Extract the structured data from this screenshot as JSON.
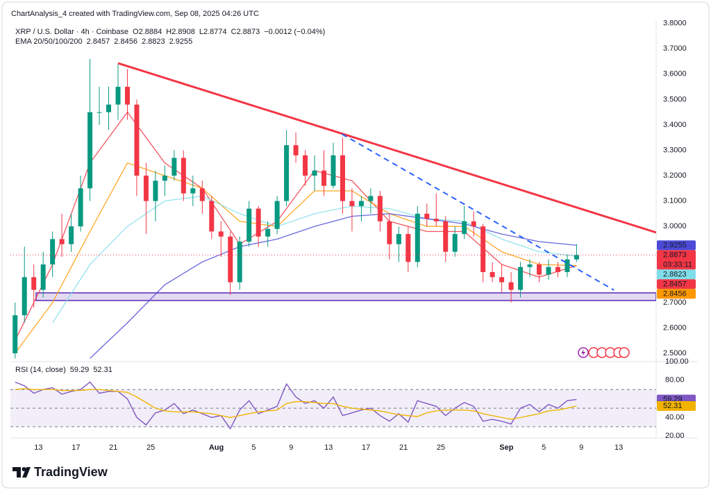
{
  "header": {
    "credit": "ChartAnalysis_4 created with TradingView.com, Sep 08, 2025 04:26 UTC"
  },
  "chart_data": {
    "type": "candlestick",
    "title": "XRP / U.S. Dollar · 4h · Coinbase",
    "ohlc_legend": [
      {
        "label": "O",
        "value": 2.8884
      },
      {
        "label": "H",
        "value": 2.8908
      },
      {
        "label": "L",
        "value": 2.8774
      },
      {
        "label": "C",
        "value": 2.8873
      }
    ],
    "change": "−0.0012 (−0.04%)",
    "x": [
      "2025-07-10",
      "2025-07-11",
      "2025-07-12",
      "2025-07-13",
      "2025-07-14",
      "2025-07-15",
      "2025-07-16",
      "2025-07-17",
      "2025-07-18",
      "2025-07-19",
      "2025-07-20",
      "2025-07-21",
      "2025-07-22",
      "2025-07-23",
      "2025-07-24",
      "2025-07-25",
      "2025-07-26",
      "2025-07-27",
      "2025-07-28",
      "2025-07-29",
      "2025-07-30",
      "2025-07-31",
      "2025-08-01",
      "2025-08-02",
      "2025-08-03",
      "2025-08-04",
      "2025-08-05",
      "2025-08-06",
      "2025-08-07",
      "2025-08-08",
      "2025-08-09",
      "2025-08-10",
      "2025-08-11",
      "2025-08-12",
      "2025-08-13",
      "2025-08-14",
      "2025-08-15",
      "2025-08-16",
      "2025-08-17",
      "2025-08-18",
      "2025-08-19",
      "2025-08-20",
      "2025-08-21",
      "2025-08-22",
      "2025-08-23",
      "2025-08-24",
      "2025-08-25",
      "2025-08-26",
      "2025-08-27",
      "2025-08-28",
      "2025-08-29",
      "2025-08-30",
      "2025-08-31",
      "2025-09-01",
      "2025-09-02",
      "2025-09-03",
      "2025-09-04",
      "2025-09-05",
      "2025-09-06",
      "2025-09-07",
      "2025-09-08"
    ],
    "open": [
      2.5,
      2.65,
      2.8,
      2.75,
      2.85,
      2.95,
      2.93,
      3.0,
      3.15,
      3.45,
      3.45,
      3.48,
      3.55,
      3.48,
      3.2,
      3.1,
      3.18,
      3.2,
      3.27,
      3.13,
      3.15,
      3.1,
      2.98,
      2.96,
      2.78,
      2.94,
      3.07,
      2.96,
      2.99,
      3.1,
      3.32,
      3.28,
      3.2,
      3.22,
      3.16,
      3.28,
      3.1,
      3.08,
      3.1,
      3.12,
      3.02,
      2.93,
      2.97,
      2.86,
      3.05,
      3.03,
      3.02,
      2.9,
      2.97,
      3.02,
      3.0,
      2.82,
      2.8,
      2.78,
      2.75,
      2.84,
      2.85,
      2.81,
      2.84,
      2.82,
      2.87
    ],
    "high": [
      2.7,
      2.92,
      2.85,
      2.9,
      2.98,
      3.05,
      3.05,
      3.2,
      3.66,
      3.55,
      3.55,
      3.64,
      3.62,
      3.5,
      3.25,
      3.22,
      3.24,
      3.3,
      3.3,
      3.2,
      3.18,
      3.12,
      3.02,
      2.98,
      2.96,
      3.1,
      3.08,
      3.02,
      3.12,
      3.38,
      3.37,
      3.3,
      3.28,
      3.3,
      3.33,
      3.35,
      3.15,
      3.12,
      3.15,
      3.14,
      3.05,
      3.0,
      3.0,
      3.08,
      3.09,
      3.13,
      3.04,
      3.0,
      3.08,
      3.06,
      3.01,
      2.86,
      2.85,
      2.82,
      2.86,
      2.87,
      2.86,
      2.87,
      2.86,
      2.89,
      2.93
    ],
    "low": [
      2.48,
      2.62,
      2.68,
      2.72,
      2.8,
      2.88,
      2.9,
      2.98,
      3.1,
      3.4,
      3.38,
      3.42,
      3.42,
      3.12,
      2.97,
      3.02,
      3.12,
      3.18,
      3.1,
      3.08,
      3.05,
      2.95,
      2.88,
      2.73,
      2.75,
      2.92,
      2.92,
      2.92,
      2.97,
      3.08,
      3.25,
      3.16,
      3.14,
      3.12,
      3.15,
      3.05,
      2.98,
      3.02,
      3.05,
      2.98,
      2.87,
      2.86,
      2.82,
      2.84,
      3.0,
      3.0,
      2.86,
      2.88,
      2.95,
      2.96,
      2.78,
      2.78,
      2.74,
      2.7,
      2.72,
      2.8,
      2.78,
      2.79,
      2.8,
      2.8,
      2.86
    ],
    "close": [
      2.65,
      2.8,
      2.75,
      2.85,
      2.95,
      2.93,
      3.0,
      3.15,
      3.45,
      3.45,
      3.48,
      3.55,
      3.48,
      3.2,
      3.1,
      3.18,
      3.2,
      3.27,
      3.13,
      3.15,
      3.1,
      2.98,
      2.96,
      2.78,
      2.94,
      3.07,
      2.96,
      2.99,
      3.1,
      3.32,
      3.28,
      3.2,
      3.22,
      3.16,
      3.28,
      3.1,
      3.08,
      3.1,
      3.12,
      3.02,
      2.93,
      2.97,
      2.86,
      3.05,
      3.03,
      3.02,
      2.9,
      2.97,
      3.02,
      3.0,
      2.82,
      2.8,
      2.78,
      2.75,
      2.84,
      2.85,
      2.81,
      2.84,
      2.82,
      2.87,
      2.8873
    ],
    "up_color": "#089981",
    "down_color": "#f23645",
    "countdown": "03:33:11",
    "xlim": [
      "2025-07-10",
      "2025-09-17"
    ],
    "ylim": [
      2.47,
      3.81
    ],
    "xticks": [
      {
        "value": "2025-07-13",
        "label": "13"
      },
      {
        "value": "2025-07-17",
        "label": "17"
      },
      {
        "value": "2025-07-21",
        "label": "21"
      },
      {
        "value": "2025-07-25",
        "label": "25"
      },
      {
        "value": "2025-08-01",
        "label": "Aug"
      },
      {
        "value": "2025-08-05",
        "label": "5"
      },
      {
        "value": "2025-08-09",
        "label": "9"
      },
      {
        "value": "2025-08-13",
        "label": "13"
      },
      {
        "value": "2025-08-17",
        "label": "17"
      },
      {
        "value": "2025-08-21",
        "label": "21"
      },
      {
        "value": "2025-08-25",
        "label": "25"
      },
      {
        "value": "2025-09-01",
        "label": "Sep"
      },
      {
        "value": "2025-09-05",
        "label": "5"
      },
      {
        "value": "2025-09-09",
        "label": "9"
      },
      {
        "value": "2025-09-13",
        "label": "13"
      }
    ],
    "yticks": [
      {
        "value": 3.8,
        "label": "3.8000"
      },
      {
        "value": 3.7,
        "label": "3.7000"
      },
      {
        "value": 3.6,
        "label": "3.6000"
      },
      {
        "value": 3.5,
        "label": "3.5000"
      },
      {
        "value": 3.4,
        "label": "3.4000"
      },
      {
        "value": 3.3,
        "label": "3.3000"
      },
      {
        "value": 3.2,
        "label": "3.2000"
      },
      {
        "value": 3.1,
        "label": "3.1000"
      },
      {
        "value": 3.0,
        "label": "3.0000"
      },
      {
        "value": 2.7,
        "label": "2.7000"
      },
      {
        "value": 2.6,
        "label": "2.6000"
      },
      {
        "value": 2.5,
        "label": "2.5000"
      }
    ],
    "indicator_label": "EMA 20/50/100/200",
    "emas": [
      {
        "color": "#f23645",
        "x": [
          "2025-07-10",
          "2025-07-14",
          "2025-07-18",
          "2025-07-22",
          "2025-07-26",
          "2025-07-30",
          "2025-08-03",
          "2025-08-07",
          "2025-08-11",
          "2025-08-15",
          "2025-08-19",
          "2025-08-23",
          "2025-08-27",
          "2025-08-31",
          "2025-09-04",
          "2025-09-08"
        ],
        "values": [
          2.55,
          2.85,
          3.25,
          3.45,
          3.25,
          3.15,
          2.93,
          3.02,
          3.22,
          3.18,
          3.02,
          2.98,
          2.98,
          2.85,
          2.8,
          2.8457
        ]
      },
      {
        "color": "#ff9800",
        "x": [
          "2025-07-10",
          "2025-07-14",
          "2025-07-18",
          "2025-07-22",
          "2025-07-26",
          "2025-07-30",
          "2025-08-03",
          "2025-08-07",
          "2025-08-11",
          "2025-08-15",
          "2025-08-19",
          "2025-08-23",
          "2025-08-27",
          "2025-08-31",
          "2025-09-04",
          "2025-09-08"
        ],
        "values": [
          2.5,
          2.7,
          2.98,
          3.25,
          3.2,
          3.15,
          3.02,
          3.0,
          3.14,
          3.14,
          3.05,
          3.0,
          3.0,
          2.9,
          2.85,
          2.8456
        ]
      },
      {
        "color": "#80deea",
        "x": [
          "2025-07-10",
          "2025-07-14",
          "2025-07-18",
          "2025-07-22",
          "2025-07-26",
          "2025-07-30",
          "2025-08-03",
          "2025-08-07",
          "2025-08-11",
          "2025-08-15",
          "2025-08-19",
          "2025-08-23",
          "2025-08-27",
          "2025-08-31",
          "2025-09-04",
          "2025-09-08"
        ],
        "values": [
          null,
          2.62,
          2.85,
          3.0,
          3.1,
          3.12,
          3.05,
          3.0,
          3.05,
          3.08,
          3.07,
          3.03,
          3.02,
          2.95,
          2.9,
          2.8823
        ]
      },
      {
        "color": "#4b4bd8",
        "x": [
          "2025-07-10",
          "2025-07-14",
          "2025-07-18",
          "2025-07-22",
          "2025-07-26",
          "2025-07-30",
          "2025-08-03",
          "2025-08-07",
          "2025-08-11",
          "2025-08-15",
          "2025-08-19",
          "2025-08-23",
          "2025-08-27",
          "2025-08-31",
          "2025-09-04",
          "2025-09-08"
        ],
        "values": [
          null,
          null,
          2.48,
          2.62,
          2.77,
          2.86,
          2.92,
          2.95,
          3.0,
          3.04,
          3.05,
          3.03,
          3.01,
          2.97,
          2.94,
          2.9255
        ]
      }
    ],
    "drawings": [
      {
        "style": "solid",
        "color": "#f23645",
        "x": [
          "2025-07-21T12:00",
          "2025-09-17T00:00"
        ],
        "y": [
          3.643,
          2.976
        ]
      },
      {
        "style": "dashed",
        "color": "#2962ff",
        "x": [
          "2025-08-14T10:00",
          "2025-09-12T12:00"
        ],
        "y": [
          3.364,
          2.749
        ]
      }
    ],
    "zone": {
      "x": [
        "2025-07-12T18:00",
        "2025-09-17T00:00"
      ],
      "y": [
        2.708,
        2.738
      ],
      "color": "#7e57c2"
    }
  },
  "rsi": {
    "type": "line",
    "label": "RSI (14, close)",
    "series": [
      {
        "color": "#7e57c2",
        "values": [
          78,
          74,
          66,
          70,
          72,
          65,
          68,
          70,
          78,
          66,
          68,
          68,
          60,
          40,
          32,
          45,
          48,
          55,
          44,
          48,
          44,
          40,
          42,
          28,
          48,
          58,
          44,
          48,
          52,
          76,
          62,
          55,
          58,
          50,
          62,
          42,
          45,
          48,
          50,
          42,
          36,
          44,
          35,
          58,
          55,
          52,
          42,
          50,
          56,
          52,
          36,
          38,
          36,
          33,
          50,
          54,
          46,
          54,
          50,
          58,
          59.29
        ]
      },
      {
        "color": "#f2b300",
        "values": [
          70,
          71,
          70,
          70,
          70,
          69,
          69,
          69,
          70,
          70,
          69,
          68,
          67,
          62,
          56,
          50,
          47,
          46,
          46,
          46,
          45,
          44,
          42,
          40,
          42,
          44,
          46,
          47,
          48,
          55,
          57,
          57,
          56,
          55,
          55,
          52,
          50,
          49,
          48,
          47,
          45,
          43,
          42,
          41,
          45,
          47,
          48,
          48,
          48,
          47,
          44,
          42,
          40,
          38,
          40,
          42,
          44,
          47,
          48,
          50,
          52.31
        ]
      }
    ],
    "ylim": [
      18,
      100
    ],
    "yticks": [
      {
        "value": 100,
        "label": "100.00"
      },
      {
        "value": 80,
        "label": "80.00"
      },
      {
        "value": 40,
        "label": "40.00"
      },
      {
        "value": 20,
        "label": "20.00"
      }
    ],
    "band": [
      30,
      70
    ],
    "midline": 50
  },
  "branding": "TradingView"
}
